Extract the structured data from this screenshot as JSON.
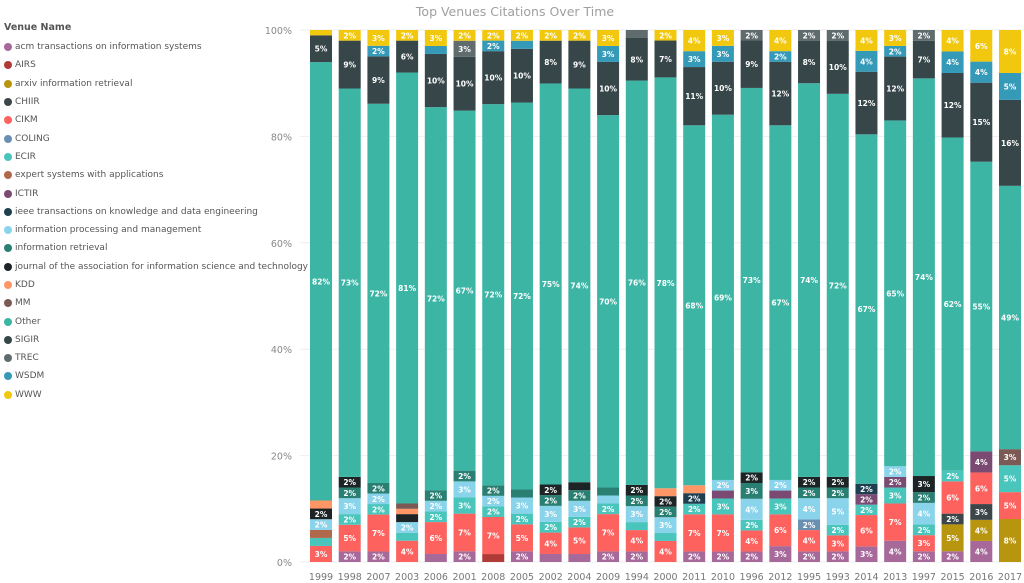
{
  "chart_data": {
    "type": "bar",
    "stacked": "100%",
    "title": "Top Venues Citations Over Time",
    "legend_title": "Venue Name",
    "legend_position": "left",
    "ylim": [
      0,
      100
    ],
    "yticks": [
      "0%",
      "20%",
      "40%",
      "60%",
      "80%",
      "100%"
    ],
    "grid": true,
    "categories": [
      "1999",
      "1998",
      "2007",
      "2003",
      "2006",
      "2001",
      "2008",
      "2005",
      "2002",
      "2004",
      "2009",
      "1994",
      "2000",
      "2011",
      "2010",
      "1996",
      "2012",
      "1995",
      "1993",
      "2014",
      "2013",
      "1997",
      "2015",
      "2016",
      "2017"
    ],
    "series": [
      {
        "name": "acm transactions on information systems",
        "color": "#a66999",
        "values": [
          0,
          2,
          2,
          0,
          1.5,
          2,
          0,
          2,
          1.5,
          1.5,
          2,
          2,
          0,
          2,
          2,
          2,
          3,
          2,
          2,
          3,
          4,
          2,
          2,
          4,
          0
        ]
      },
      {
        "name": "AIRS",
        "color": "#b03a35",
        "values": [
          0,
          0,
          0,
          0,
          0,
          0,
          1.5,
          0,
          0,
          0,
          0,
          0,
          0,
          0,
          0,
          0,
          0,
          0,
          0,
          0,
          0,
          0,
          0,
          0,
          0
        ]
      },
      {
        "name": "arxiv information retrieval",
        "color": "#b8950e",
        "values": [
          0,
          0,
          0,
          0,
          0,
          0,
          0,
          0,
          0,
          0,
          0,
          0,
          0,
          0,
          0,
          0,
          0,
          0,
          0,
          0,
          0,
          0,
          5,
          4,
          8
        ]
      },
      {
        "name": "CHIIR",
        "color": "#3c4648",
        "values": [
          0,
          0,
          0,
          0,
          0,
          0,
          0,
          0,
          0,
          0,
          0,
          0,
          0,
          0,
          0,
          0,
          0,
          0,
          0,
          0,
          0,
          0,
          2,
          3,
          0
        ]
      },
      {
        "name": "CIKM",
        "color": "#fd625e",
        "values": [
          3,
          5,
          7,
          4,
          6,
          7,
          7,
          5,
          4,
          5,
          7,
          4,
          4,
          7,
          7,
          4,
          6,
          4,
          3,
          6,
          7,
          3,
          6,
          6,
          5
        ]
      },
      {
        "name": "COLING",
        "color": "#6a8fb0",
        "values": [
          0,
          0,
          0,
          0,
          0,
          0,
          0,
          0,
          0,
          0,
          0,
          0,
          0,
          0,
          0,
          0,
          0,
          2,
          0,
          0,
          0,
          0,
          0,
          0,
          0
        ]
      },
      {
        "name": "ECIR",
        "color": "#4ac5bb",
        "values": [
          1.5,
          2,
          2,
          1.5,
          2,
          3,
          2,
          2,
          2,
          2,
          2,
          1.5,
          1.5,
          2,
          3,
          2,
          3,
          0,
          2,
          2,
          3,
          2,
          2,
          0,
          5
        ]
      },
      {
        "name": "expert systems with applications",
        "color": "#b0694a",
        "values": [
          1.5,
          0,
          0,
          0,
          0,
          0,
          0,
          0,
          0,
          0,
          0,
          0,
          0,
          0,
          0,
          0,
          0,
          0,
          0,
          0,
          0,
          0,
          0,
          0,
          0
        ]
      },
      {
        "name": "ICTIR",
        "color": "#7a4a72",
        "values": [
          0,
          0,
          0,
          0,
          0,
          0,
          0,
          0,
          0,
          0,
          0,
          0,
          0,
          0,
          1.5,
          0,
          1.5,
          0,
          0,
          2,
          2,
          0,
          0,
          4,
          0
        ]
      },
      {
        "name": "ieee transactions on knowledge and data engineering",
        "color": "#1e3f4f",
        "values": [
          0,
          0,
          0,
          0,
          0,
          0,
          0,
          0,
          0,
          0,
          0,
          0,
          0,
          2,
          0,
          0,
          0,
          0,
          0,
          2,
          0,
          0,
          0,
          0,
          0
        ]
      },
      {
        "name": "information processing and management",
        "color": "#8ad4eb",
        "values": [
          2,
          3,
          2,
          2,
          2,
          3,
          2,
          3,
          3,
          3,
          1.5,
          3,
          3,
          0,
          2,
          4,
          2,
          4,
          5,
          0,
          2,
          4,
          0,
          0,
          0
        ]
      },
      {
        "name": "information retrieval",
        "color": "#2a7f73",
        "values": [
          0,
          2,
          2,
          0,
          2,
          2,
          2,
          1.5,
          2,
          2,
          1.5,
          2,
          2,
          0,
          0,
          3,
          0,
          2,
          2,
          0,
          0,
          2,
          0,
          0,
          0
        ]
      },
      {
        "name": "journal of the association for information science and technology",
        "color": "#1d2426",
        "values": [
          2,
          2,
          0,
          1.5,
          0,
          0,
          0,
          0,
          2,
          1.5,
          0,
          2,
          2,
          0,
          0,
          2,
          0,
          2,
          2,
          0,
          0,
          3,
          0,
          0,
          0
        ]
      },
      {
        "name": "KDD",
        "color": "#fe9666",
        "values": [
          1.5,
          0,
          0,
          1,
          0,
          0,
          0,
          0,
          0,
          0,
          0,
          0,
          1.5,
          1.5,
          0,
          0,
          0,
          0,
          0,
          0,
          0,
          0,
          0,
          0,
          0
        ]
      },
      {
        "name": "MM",
        "color": "#7b5a55",
        "values": [
          0,
          0,
          0,
          1,
          0,
          0,
          0,
          0,
          0,
          0,
          0,
          0,
          0,
          0,
          0,
          0,
          0,
          0,
          0,
          0,
          0,
          0,
          0,
          0,
          3
        ]
      },
      {
        "name": "Other",
        "color": "#3cb5a5",
        "values": [
          82,
          73,
          72,
          81,
          72,
          67,
          72,
          72,
          75,
          74,
          70,
          76,
          78,
          68,
          69,
          73,
          67,
          74,
          72,
          67,
          65,
          74,
          62,
          55,
          49
        ]
      },
      {
        "name": "SIGIR",
        "color": "#374649",
        "values": [
          5,
          9,
          9,
          6,
          10,
          10,
          10,
          10,
          8,
          9,
          10,
          8,
          7,
          11,
          10,
          9,
          12,
          8,
          10,
          12,
          12,
          7,
          12,
          15,
          16
        ]
      },
      {
        "name": "TREC",
        "color": "#5f6b6d",
        "values": [
          0,
          0,
          0,
          0,
          0,
          3,
          0,
          0,
          0,
          0,
          0,
          1.5,
          0,
          0,
          0,
          2,
          0,
          2,
          2,
          0,
          0,
          2,
          0,
          0,
          0
        ]
      },
      {
        "name": "WSDM",
        "color": "#3599b8",
        "values": [
          0,
          0,
          2,
          0,
          1.5,
          0,
          2,
          1.5,
          0,
          0,
          3,
          0,
          0,
          3,
          3,
          0,
          2,
          0,
          0,
          4,
          2,
          0,
          4,
          4,
          5
        ]
      },
      {
        "name": "WWW",
        "color": "#f2c80f",
        "values": [
          1,
          2,
          3,
          2,
          3,
          2,
          2,
          2,
          2,
          2,
          3,
          0,
          2,
          4,
          3,
          0,
          4,
          0,
          0,
          4,
          3,
          0,
          4,
          6,
          8
        ]
      }
    ]
  }
}
